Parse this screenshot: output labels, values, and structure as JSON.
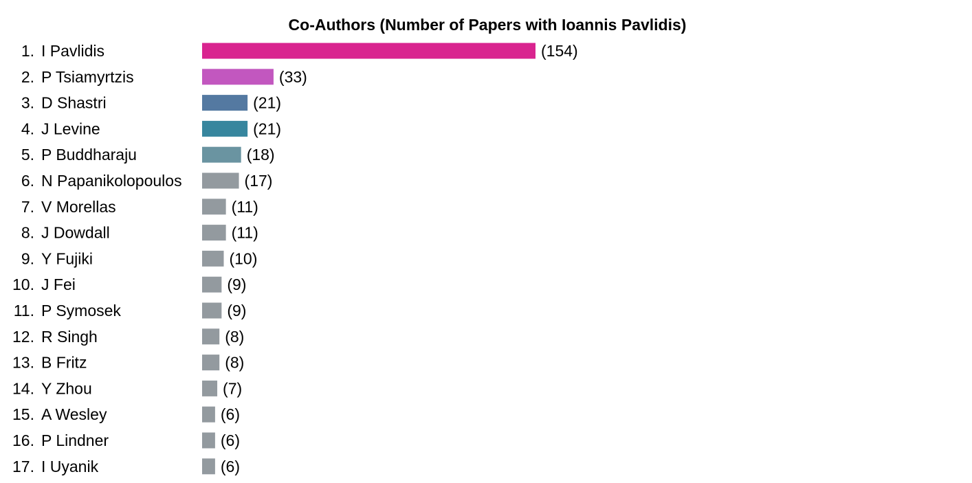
{
  "chart_data": {
    "type": "bar",
    "orientation": "horizontal",
    "title": "Co-Authors (Number of Papers with Ioannis Pavlidis)",
    "categories": [
      "I Pavlidis",
      "P Tsiamyrtzis",
      "D Shastri",
      "J Levine",
      "P Buddharaju",
      "N Papanikolopoulos",
      "V Morellas",
      "J Dowdall",
      "Y Fujiki",
      "J Fei",
      "P Symosek",
      "R Singh",
      "B Fritz",
      "Y Zhou",
      "A Wesley",
      "P Lindner",
      "I Uyanik"
    ],
    "ranks": [
      "1.",
      "2.",
      "3.",
      "4.",
      "5.",
      "6.",
      "7.",
      "8.",
      "9.",
      "10.",
      "11.",
      "12.",
      "13.",
      "14.",
      "15.",
      "16.",
      "17."
    ],
    "values": [
      154,
      33,
      21,
      21,
      18,
      17,
      11,
      11,
      10,
      9,
      9,
      8,
      8,
      7,
      6,
      6,
      6
    ],
    "value_labels": [
      "(154)",
      "(33)",
      "(21)",
      "(21)",
      "(18)",
      "(17)",
      "(11)",
      "(11)",
      "(10)",
      "(9)",
      "(9)",
      "(8)",
      "(8)",
      "(7)",
      "(6)",
      "(6)",
      "(6)"
    ],
    "colors": [
      "#d9248f",
      "#c257bf",
      "#5479a1",
      "#37869e",
      "#6a94a1",
      "#939a9f",
      "#939a9f",
      "#939a9f",
      "#939a9f",
      "#939a9f",
      "#939a9f",
      "#939a9f",
      "#939a9f",
      "#939a9f",
      "#939a9f",
      "#939a9f",
      "#939a9f"
    ],
    "xlim": [
      0,
      154
    ],
    "grid": false,
    "legend": "none"
  }
}
